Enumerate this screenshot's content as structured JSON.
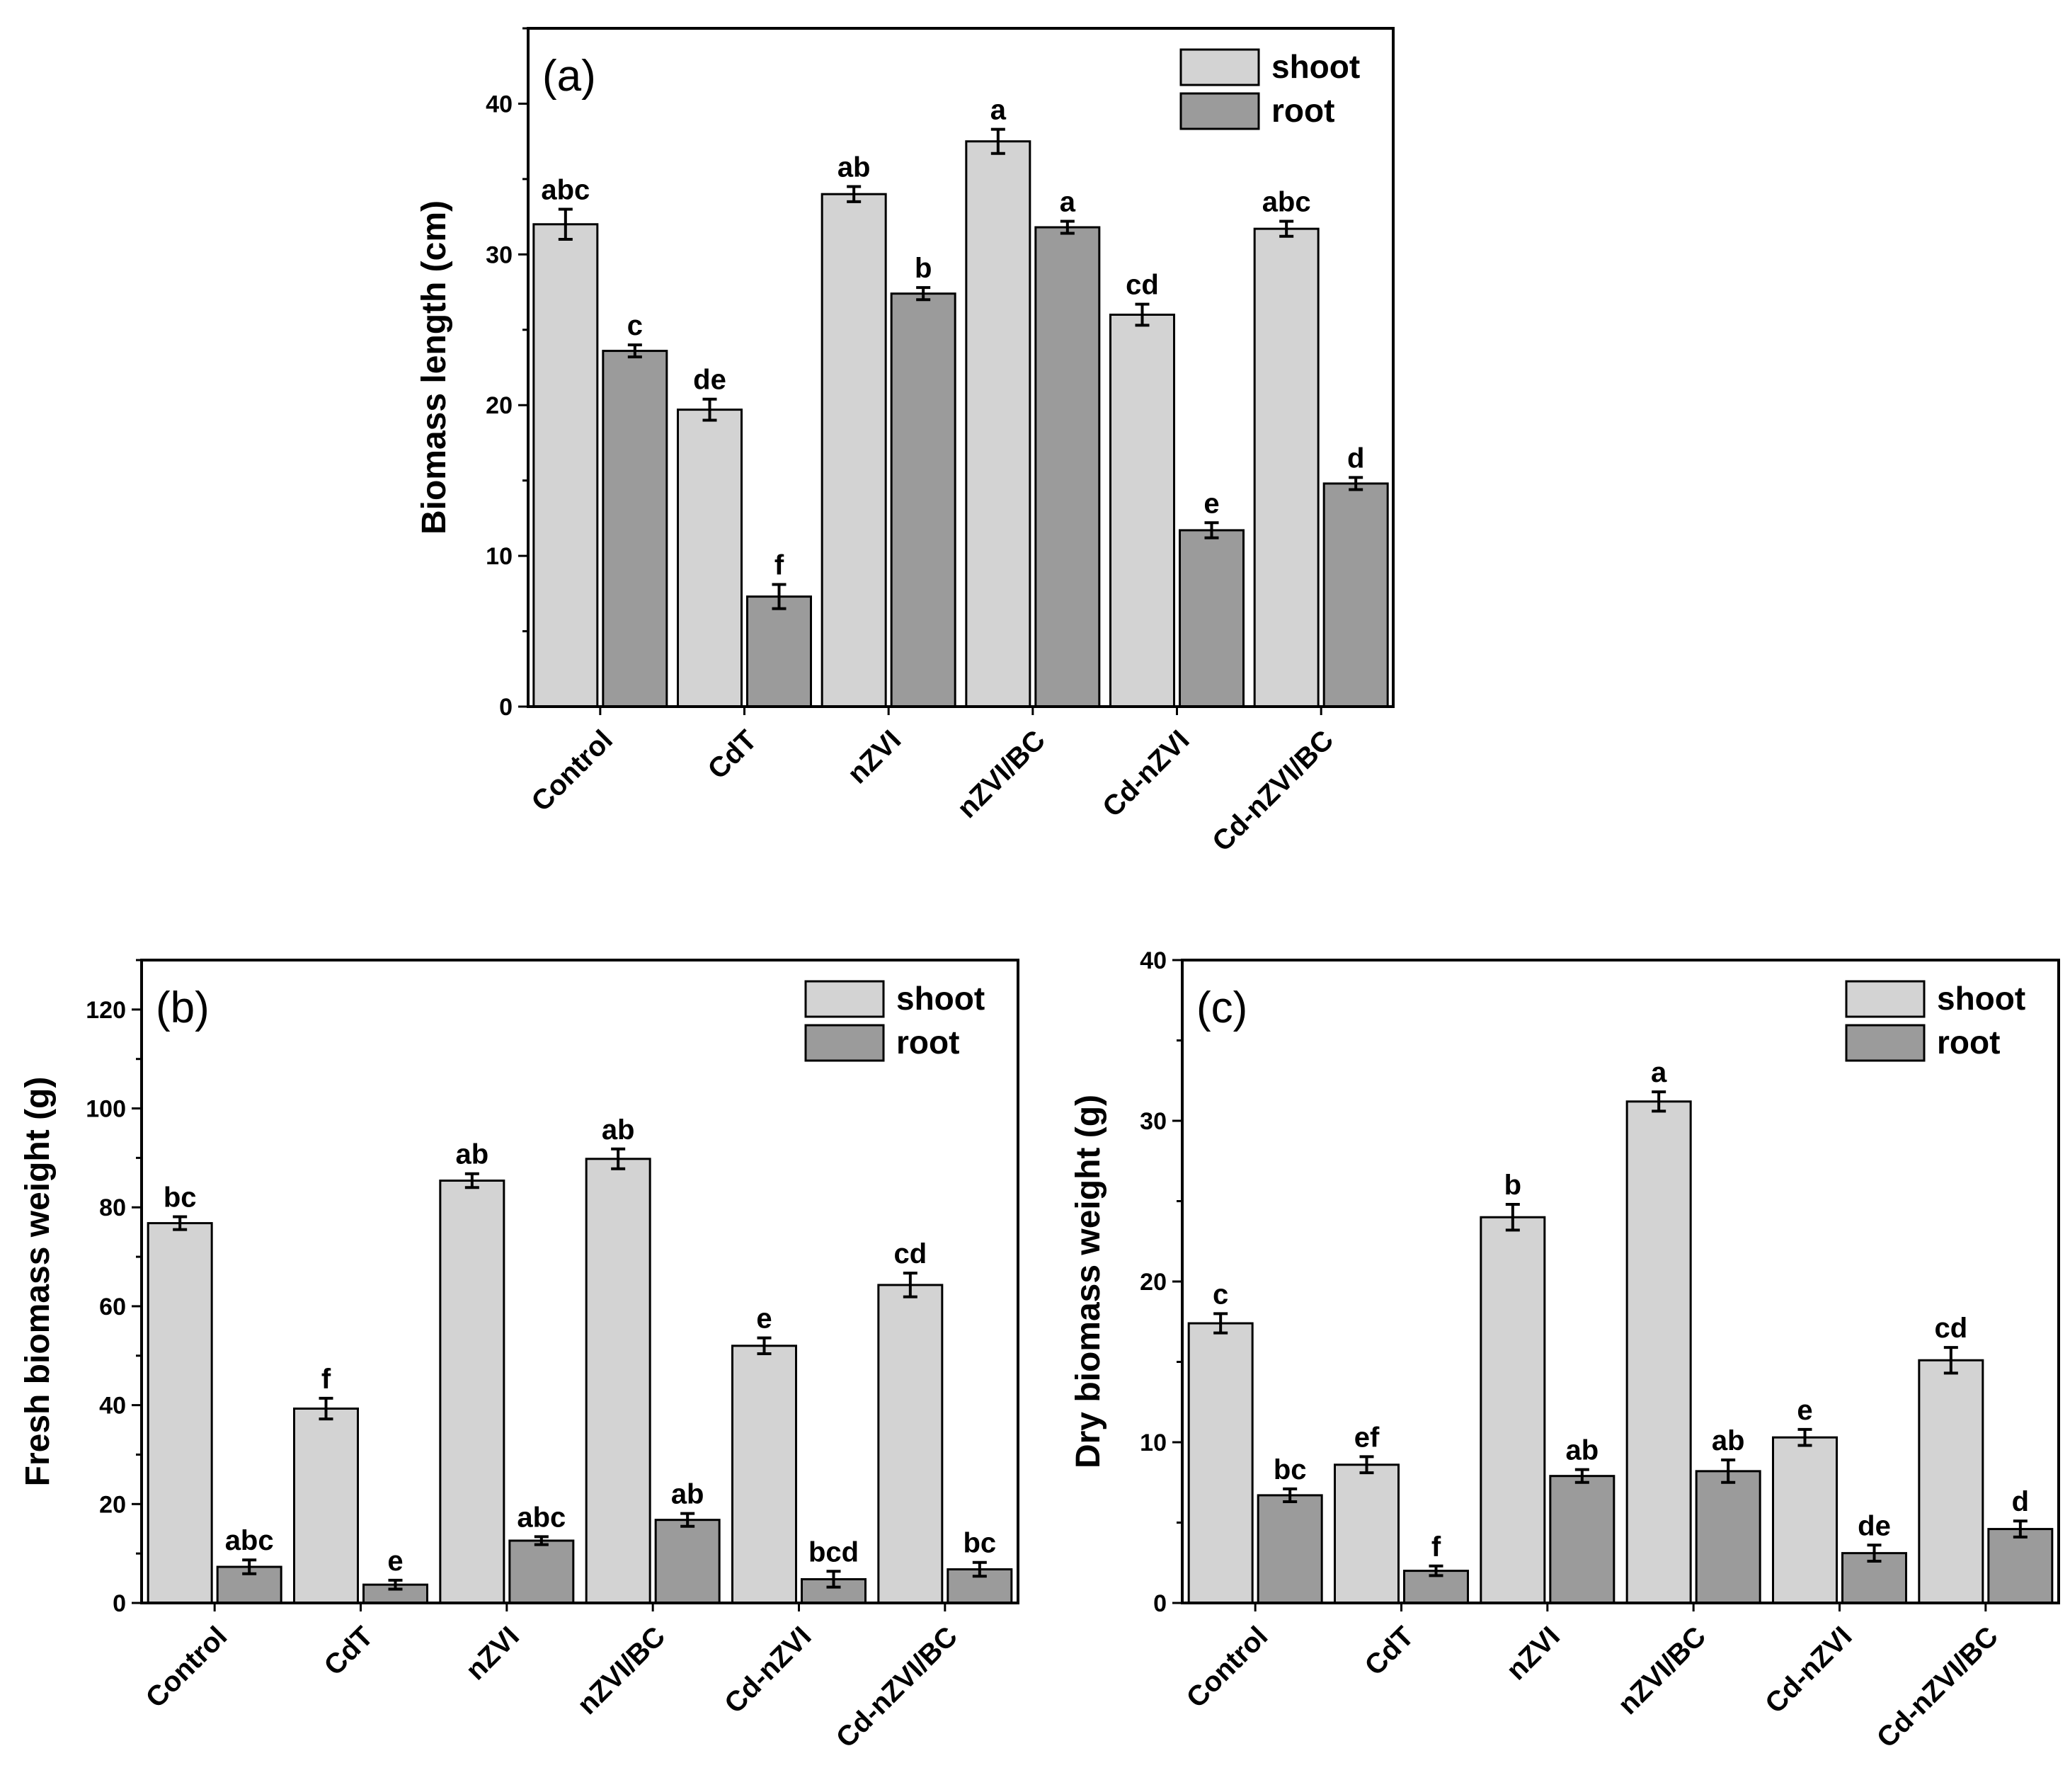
{
  "colors": {
    "shoot": "#d3d3d3",
    "root": "#9b9b9b",
    "axis": "#000000"
  },
  "chart_data": [
    {
      "id": "a",
      "type": "bar",
      "panel_label": "(a)",
      "title": "",
      "xlabel": "",
      "ylabel": "Biomass length (cm)",
      "ylim": [
        0,
        45
      ],
      "yticks": [
        0,
        10,
        20,
        30,
        40
      ],
      "legend_position": "top-right",
      "categories": [
        "Control",
        "CdT",
        "nZVI",
        "nZVI/BC",
        "Cd-nZVI",
        "Cd-nZVI/BC"
      ],
      "series": [
        {
          "name": "shoot",
          "values": [
            32.0,
            19.7,
            34.0,
            37.5,
            26.0,
            31.7
          ],
          "errors": [
            1.0,
            0.7,
            0.5,
            0.8,
            0.7,
            0.5
          ],
          "labels": [
            "abc",
            "de",
            "ab",
            "a",
            "cd",
            "abc"
          ]
        },
        {
          "name": "root",
          "values": [
            23.6,
            7.3,
            27.4,
            31.8,
            11.7,
            14.8
          ],
          "errors": [
            0.4,
            0.8,
            0.4,
            0.4,
            0.5,
            0.4
          ],
          "labels": [
            "c",
            "f",
            "b",
            "a",
            "e",
            "d"
          ]
        }
      ]
    },
    {
      "id": "b",
      "type": "bar",
      "panel_label": "(b)",
      "title": "",
      "xlabel": "",
      "ylabel": "Fresh biomass weight (g)",
      "ylim": [
        0,
        130
      ],
      "yticks": [
        0,
        20,
        40,
        60,
        80,
        100,
        120
      ],
      "legend_position": "top-right",
      "categories": [
        "Control",
        "CdT",
        "nZVI",
        "nZVI/BC",
        "Cd-nZVI",
        "Cd-nZVI/BC"
      ],
      "series": [
        {
          "name": "shoot",
          "values": [
            76.8,
            39.3,
            85.4,
            89.8,
            52.0,
            64.3
          ],
          "errors": [
            1.3,
            2.1,
            1.4,
            2.0,
            1.6,
            2.4
          ],
          "labels": [
            "bc",
            "f",
            "ab",
            "ab",
            "e",
            "cd"
          ]
        },
        {
          "name": "root",
          "values": [
            7.3,
            3.7,
            12.6,
            16.8,
            4.8,
            6.8
          ],
          "errors": [
            1.4,
            0.9,
            0.8,
            1.3,
            1.6,
            1.4
          ],
          "labels": [
            "abc",
            "e",
            "abc",
            "ab",
            "bcd",
            "bc"
          ]
        }
      ]
    },
    {
      "id": "c",
      "type": "bar",
      "panel_label": "(c)",
      "title": "",
      "xlabel": "",
      "ylabel": "Dry biomass weight (g)",
      "ylim": [
        0,
        40
      ],
      "yticks": [
        0,
        10,
        20,
        30,
        40
      ],
      "legend_position": "top-right",
      "categories": [
        "Control",
        "CdT",
        "nZVI",
        "nZVI/BC",
        "Cd-nZVI",
        "Cd-nZVI/BC"
      ],
      "series": [
        {
          "name": "shoot",
          "values": [
            17.4,
            8.6,
            24.0,
            31.2,
            10.3,
            15.1
          ],
          "errors": [
            0.6,
            0.5,
            0.8,
            0.6,
            0.5,
            0.8
          ],
          "labels": [
            "c",
            "ef",
            "b",
            "a",
            "e",
            "cd"
          ]
        },
        {
          "name": "root",
          "values": [
            6.7,
            2.0,
            7.9,
            8.2,
            3.1,
            4.6
          ],
          "errors": [
            0.4,
            0.3,
            0.4,
            0.7,
            0.5,
            0.5
          ],
          "labels": [
            "bc",
            "f",
            "ab",
            "ab",
            "de",
            "d"
          ]
        }
      ]
    }
  ]
}
